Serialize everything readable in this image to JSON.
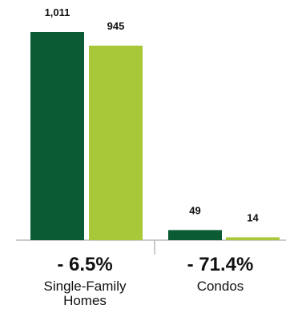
{
  "chart_data": {
    "type": "bar",
    "categories": [
      "Single-Family Homes",
      "Condos"
    ],
    "category_label_lines": [
      [
        "Single-Family",
        "Homes"
      ],
      [
        "Condos"
      ]
    ],
    "series": [
      {
        "values": [
          1011,
          49
        ],
        "labels": [
          "1,011",
          "49"
        ],
        "color": "#0b5b34"
      },
      {
        "values": [
          945,
          14
        ],
        "labels": [
          "945",
          "14"
        ],
        "color": "#a8c83a"
      }
    ],
    "percent_change": [
      "- 6.5%",
      "- 71.4%"
    ],
    "ylim": [
      0,
      1011
    ],
    "grid": false,
    "legend": "none",
    "axis_color": "#bbbbbb"
  }
}
